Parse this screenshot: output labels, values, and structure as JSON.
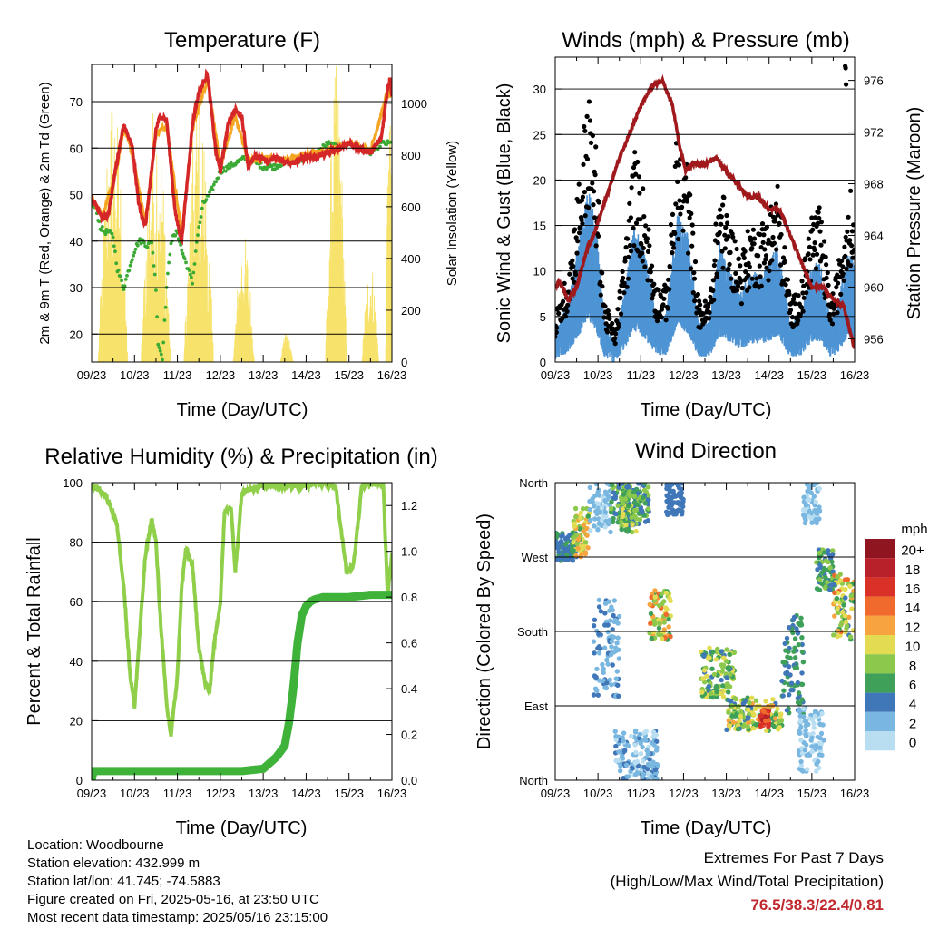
{
  "colors": {
    "red": "#d62728",
    "orange": "#f5a623",
    "green": "#3aaa35",
    "yellow": "#f7e36b",
    "maroon": "#a0191c",
    "black": "#000000",
    "blue": "#4e94d4",
    "rh": "#8fcf4a",
    "precip": "#3fb23a",
    "extremes": "#c0282d"
  },
  "footer": {
    "location": "Location: Woodbourne",
    "elevation": "Station elevation: 432.999 m",
    "latlon": "Station lat/lon: 41.745; -74.5883",
    "created": "Figure created on Fri, 2025-05-16, at 23:50 UTC",
    "recent": "Most recent data timestamp: 2025/05/16 23:15:00"
  },
  "extremes": {
    "line1": "Extremes For Past 7 Days",
    "line2": "(High/Low/Max Wind/Total Precipitation)",
    "values": "76.5/38.3/22.4/0.81"
  },
  "chart_data": [
    {
      "id": "temperature",
      "type": "line",
      "title": "Temperature (F)",
      "xlabel": "Time (Day/UTC)",
      "ylabel": "2m & 9m T (Red, Orange) & 2m Td (Green)",
      "y2label": "Solar Insolation (Yellow)",
      "xticks": [
        "09/23",
        "10/23",
        "11/23",
        "12/23",
        "13/23",
        "14/23",
        "15/23",
        "16/23"
      ],
      "xlim": [
        0,
        7
      ],
      "ylim": [
        14,
        78
      ],
      "yticks": [
        20,
        30,
        40,
        50,
        60,
        70
      ],
      "y2lim": [
        0,
        1150
      ],
      "y2ticks": [
        0,
        200,
        400,
        600,
        800,
        1000
      ],
      "grid": true,
      "series": [
        {
          "key": "t2m",
          "color": "#d62728",
          "x": [
            0,
            0.1,
            0.25,
            0.4,
            0.55,
            0.75,
            0.95,
            1.1,
            1.25,
            1.4,
            1.5,
            1.6,
            1.75,
            1.95,
            2.1,
            2.25,
            2.35,
            2.5,
            2.7,
            2.9,
            3.0,
            3.2,
            3.35,
            3.5,
            3.65,
            3.8,
            3.95,
            4.1,
            4.25,
            4.5,
            4.75,
            5.0,
            5.25,
            5.5,
            5.75,
            6.0,
            6.2,
            6.5,
            6.75,
            6.9,
            6.96,
            7.0
          ],
          "y": [
            48.5,
            48,
            45,
            46,
            55,
            65,
            60,
            48,
            43,
            55,
            64,
            67,
            66,
            46,
            40,
            55,
            65,
            72,
            76,
            59,
            55,
            66,
            68,
            67,
            56,
            58,
            58,
            57,
            58,
            57,
            57,
            58,
            58,
            59,
            60,
            61,
            60,
            59,
            62,
            73,
            75,
            71
          ]
        },
        {
          "key": "t9m",
          "color": "#f5a623",
          "x": [
            0,
            0.25,
            0.55,
            0.75,
            0.95,
            1.25,
            1.5,
            1.75,
            2.1,
            2.35,
            2.7,
            3.0,
            3.35,
            3.65,
            4.0,
            4.5,
            5.0,
            5.5,
            6.0,
            6.5,
            6.9,
            7.0
          ],
          "y": [
            48.8,
            45.5,
            54,
            64,
            59,
            44,
            63,
            65,
            41,
            64,
            75,
            56,
            67,
            57,
            58,
            57.5,
            58.5,
            59.5,
            61,
            59.5,
            72,
            71
          ]
        },
        {
          "key": "td",
          "color": "#3aaa35",
          "x": [
            0,
            0.1,
            0.2,
            0.3,
            0.4,
            0.5,
            0.6,
            0.75,
            0.9,
            1.0,
            1.1,
            1.2,
            1.3,
            1.4,
            1.5,
            1.55,
            1.65,
            1.75,
            1.85,
            2.0,
            2.1,
            2.25,
            2.35,
            2.45,
            2.6,
            2.75,
            2.9,
            3.0,
            3.2,
            3.4,
            3.6,
            3.8,
            4.0,
            4.25,
            4.5,
            4.75,
            5.0,
            5.25,
            5.5,
            5.75,
            6.0,
            6.25,
            6.5,
            6.75,
            7.0
          ],
          "y": [
            48,
            47,
            43,
            42,
            42,
            41,
            34,
            30,
            35,
            38,
            40,
            40,
            39,
            40,
            30,
            18,
            15,
            30,
            40,
            42,
            38,
            34,
            31,
            40,
            48,
            50,
            53,
            55,
            56,
            57,
            58,
            57,
            56,
            56,
            57,
            57,
            58,
            59,
            61,
            60,
            61,
            60,
            59,
            61,
            61
          ]
        }
      ],
      "insolation_days": [
        {
          "start": 0.15,
          "peak_x": 0.5,
          "peak": 1080,
          "end": 0.85
        },
        {
          "start": 1.15,
          "peak_x": 1.5,
          "peak": 1050,
          "end": 1.85
        },
        {
          "start": 2.15,
          "peak_x": 2.5,
          "peak": 1060,
          "end": 2.85
        },
        {
          "start": 3.3,
          "peak_x": 3.55,
          "peak": 500,
          "end": 3.8
        },
        {
          "start": 4.4,
          "peak_x": 4.55,
          "peak": 120,
          "end": 4.7
        },
        {
          "start": 5.45,
          "peak_x": 5.7,
          "peak": 1150,
          "end": 5.95
        },
        {
          "start": 6.3,
          "peak_x": 6.5,
          "peak": 400,
          "end": 6.7
        },
        {
          "start": 6.85,
          "peak_x": 6.95,
          "peak": 1000,
          "end": 7.0
        }
      ]
    },
    {
      "id": "winds",
      "type": "scatter",
      "title": "Winds (mph) & Pressure (mb)",
      "xlabel": "Time (Day/UTC)",
      "ylabel": "Sonic Wind & Gust (Blue, Black)",
      "y2label": "Station Pressure (Maroon)",
      "xticks": [
        "09/23",
        "10/23",
        "11/23",
        "12/23",
        "13/23",
        "14/23",
        "15/23",
        "16/23"
      ],
      "xlim": [
        0,
        7
      ],
      "ylim": [
        0,
        33.5
      ],
      "yticks": [
        0,
        5,
        10,
        15,
        20,
        25,
        30
      ],
      "y2lim": [
        954.2,
        977.8
      ],
      "y2ticks": [
        956,
        960,
        964,
        968,
        972,
        976
      ],
      "grid": true,
      "wind_profile": {
        "x": [
          0,
          0.3,
          0.55,
          0.75,
          0.95,
          1.15,
          1.4,
          1.65,
          1.85,
          2.1,
          2.35,
          2.6,
          2.85,
          3.1,
          3.35,
          3.6,
          3.85,
          4.1,
          4.35,
          4.55,
          4.8,
          5.0,
          5.2,
          5.5,
          5.75,
          6.0,
          6.2,
          6.45,
          6.6,
          6.75,
          6.85,
          7.0
        ],
        "y": [
          3,
          6,
          12,
          18,
          14,
          4,
          2,
          8,
          14,
          11,
          5,
          5,
          15,
          13,
          4,
          4,
          12,
          9,
          7,
          9,
          9,
          10,
          12,
          4,
          5,
          10,
          10,
          4,
          6,
          9,
          12,
          10
        ]
      },
      "pressure": {
        "x": [
          0,
          0.1,
          0.3,
          0.5,
          0.75,
          0.9,
          1.1,
          1.3,
          1.5,
          1.75,
          2.0,
          2.25,
          2.5,
          2.75,
          2.9,
          3.05,
          3.2,
          3.5,
          3.75,
          4.0,
          4.25,
          4.5,
          4.75,
          5.0,
          5.25,
          5.5,
          5.75,
          6.0,
          6.25,
          6.5,
          6.75,
          6.9,
          7.0
        ],
        "y": [
          960,
          960.5,
          959,
          960,
          963,
          964,
          966,
          968,
          970,
          972,
          974,
          975.5,
          976,
          974,
          971,
          969,
          969.5,
          969.5,
          970,
          969,
          968,
          967,
          967,
          966,
          966,
          964,
          962,
          960,
          960,
          959,
          958.5,
          956.5,
          955.2
        ]
      },
      "gust_outliers": [
        {
          "x": 6.78,
          "y": 32.5
        },
        {
          "x": 6.79,
          "y": 32.3
        },
        {
          "x": 6.8,
          "y": 30.5
        }
      ]
    },
    {
      "id": "humidity",
      "type": "line",
      "title": "Relative Humidity (%) & Precipitation (in)",
      "xlabel": "Time (Day/UTC)",
      "ylabel": "Percent & Total Rainfall",
      "xticks": [
        "09/23",
        "10/23",
        "11/23",
        "12/23",
        "13/23",
        "14/23",
        "15/23",
        "16/23"
      ],
      "xlim": [
        0,
        7
      ],
      "ylim": [
        0,
        100
      ],
      "yticks": [
        0,
        20,
        40,
        60,
        80,
        100
      ],
      "y2lim": [
        0,
        1.3
      ],
      "y2ticks": [
        0.0,
        0.2,
        0.4,
        0.6,
        0.8,
        1.0,
        1.2
      ],
      "grid": true,
      "series": [
        {
          "key": "rh",
          "color": "#8fcf4a",
          "x": [
            0,
            0.15,
            0.3,
            0.45,
            0.6,
            0.75,
            0.9,
            1.0,
            1.1,
            1.25,
            1.4,
            1.5,
            1.6,
            1.75,
            1.85,
            2.0,
            2.1,
            2.2,
            2.35,
            2.5,
            2.65,
            2.75,
            2.85,
            3.0,
            3.1,
            3.25,
            3.35,
            3.5,
            3.75,
            4.0,
            4.25,
            4.5,
            4.75,
            5.0,
            5.25,
            5.5,
            5.7,
            5.8,
            5.95,
            6.1,
            6.3,
            6.5,
            6.7,
            6.8,
            6.9,
            7.0
          ],
          "y": [
            99,
            98,
            96,
            92,
            85,
            65,
            35,
            25,
            45,
            75,
            88,
            80,
            55,
            25,
            15,
            35,
            65,
            78,
            72,
            45,
            32,
            30,
            45,
            60,
            90,
            92,
            70,
            97,
            98,
            99,
            99,
            99,
            99,
            99,
            100,
            100,
            98,
            86,
            70,
            72,
            99,
            100,
            100,
            99,
            62,
            76
          ]
        },
        {
          "key": "precip",
          "color": "#3fb23a",
          "x": [
            0,
            0.05,
            0.2,
            0.5,
            1.0,
            2.0,
            3.0,
            3.5,
            4.0,
            4.3,
            4.5,
            4.6,
            4.7,
            4.8,
            4.9,
            5.0,
            5.1,
            5.2,
            5.4,
            6.0,
            6.5,
            7.0
          ],
          "y": [
            0.0,
            0.04,
            0.04,
            0.04,
            0.04,
            0.04,
            0.04,
            0.04,
            0.05,
            0.1,
            0.15,
            0.25,
            0.4,
            0.6,
            0.72,
            0.76,
            0.78,
            0.79,
            0.8,
            0.8,
            0.81,
            0.81
          ]
        }
      ]
    },
    {
      "id": "direction",
      "type": "scatter",
      "title": "Wind Direction",
      "xlabel": "Time (Day/UTC)",
      "ylabel": "Direction (Colored By Speed)",
      "xticks": [
        "09/23",
        "10/23",
        "11/23",
        "12/23",
        "13/23",
        "14/23",
        "15/23",
        "16/23"
      ],
      "xlim": [
        0,
        7
      ],
      "ylim": [
        0,
        360
      ],
      "ytick_labels": [
        "North",
        "East",
        "South",
        "West",
        "North"
      ],
      "yticks": [
        0,
        90,
        180,
        270,
        360
      ],
      "grid": true,
      "legend": {
        "title": "mph",
        "labels": [
          "20+",
          "18",
          "16",
          "14",
          "12",
          "10",
          "8",
          "6",
          "4",
          "2",
          "0"
        ],
        "colors": [
          "#8f1620",
          "#b8202a",
          "#d93028",
          "#ef6a2c",
          "#f7a440",
          "#e3dc52",
          "#8cc84b",
          "#3fa05a",
          "#4077b8",
          "#7ab7e0",
          "#b9def2"
        ]
      },
      "clusters": [
        {
          "x": [
            0.0,
            0.5
          ],
          "d": [
            265,
            300
          ],
          "s": [
            3,
            6
          ]
        },
        {
          "x": [
            0.4,
            0.8
          ],
          "d": [
            270,
            330
          ],
          "s": [
            6,
            13
          ]
        },
        {
          "x": [
            0.8,
            1.3
          ],
          "d": [
            300,
            360
          ],
          "s": [
            0,
            3
          ]
        },
        {
          "x": [
            1.3,
            2.2
          ],
          "d": [
            310,
            360
          ],
          "s": [
            3,
            8
          ]
        },
        {
          "x": [
            1.5,
            1.9
          ],
          "d": [
            300,
            350
          ],
          "s": [
            4,
            10
          ]
        },
        {
          "x": [
            2.2,
            2.7
          ],
          "d": [
            170,
            230
          ],
          "s": [
            6,
            14
          ]
        },
        {
          "x": [
            2.6,
            3.0
          ],
          "d": [
            320,
            360
          ],
          "s": [
            3,
            5
          ]
        },
        {
          "x": [
            1.4,
            2.4
          ],
          "d": [
            0,
            60
          ],
          "s": [
            0,
            4
          ]
        },
        {
          "x": [
            0.9,
            1.5
          ],
          "d": [
            100,
            220
          ],
          "s": [
            1,
            4
          ]
        },
        {
          "x": [
            3.4,
            4.2
          ],
          "d": [
            100,
            160
          ],
          "s": [
            4,
            11
          ]
        },
        {
          "x": [
            4.0,
            5.3
          ],
          "d": [
            60,
            100
          ],
          "s": [
            4,
            12
          ]
        },
        {
          "x": [
            4.8,
            5.0
          ],
          "d": [
            65,
            85
          ],
          "s": [
            14,
            18
          ]
        },
        {
          "x": [
            5.3,
            5.8
          ],
          "d": [
            80,
            200
          ],
          "s": [
            3,
            7
          ]
        },
        {
          "x": [
            5.8,
            6.2
          ],
          "d": [
            310,
            360
          ],
          "s": [
            0,
            3
          ]
        },
        {
          "x": [
            6.1,
            6.5
          ],
          "d": [
            230,
            280
          ],
          "s": [
            3,
            8
          ]
        },
        {
          "x": [
            6.5,
            7.0
          ],
          "d": [
            170,
            250
          ],
          "s": [
            4,
            14
          ]
        },
        {
          "x": [
            5.7,
            6.3
          ],
          "d": [
            10,
            90
          ],
          "s": [
            0,
            3
          ]
        }
      ]
    }
  ]
}
